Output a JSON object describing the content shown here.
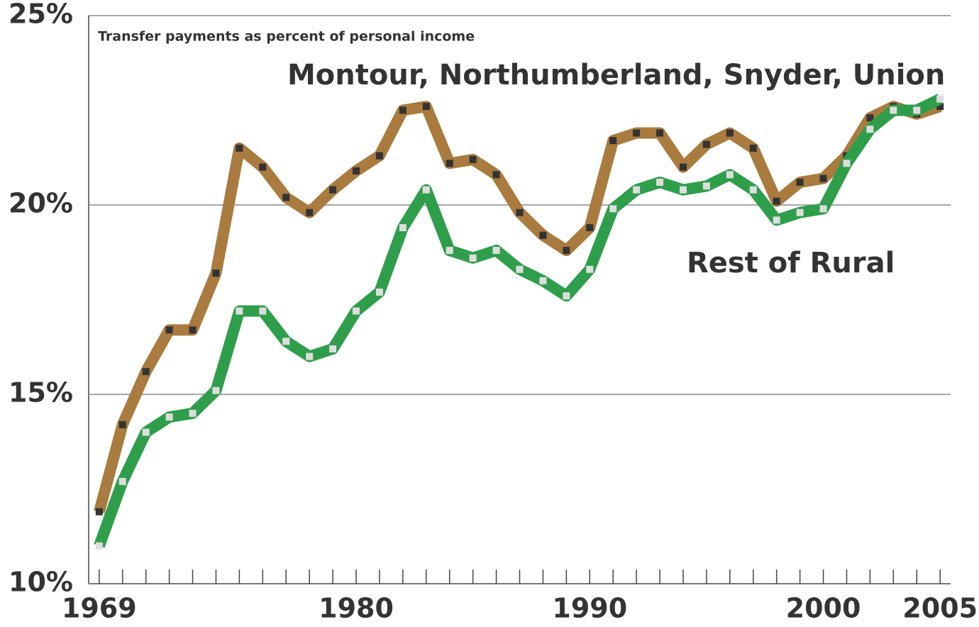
{
  "chart_data": {
    "type": "line",
    "subtitle": "Transfer payments as percent of personal income",
    "x": [
      1969,
      1970,
      1971,
      1972,
      1973,
      1974,
      1975,
      1976,
      1977,
      1978,
      1979,
      1980,
      1981,
      1982,
      1983,
      1984,
      1985,
      1986,
      1987,
      1988,
      1989,
      1990,
      1991,
      1992,
      1993,
      1994,
      1995,
      1996,
      1997,
      1998,
      1999,
      2000,
      2001,
      2002,
      2003,
      2004,
      2005
    ],
    "series": [
      {
        "name": "Montour, Northumberland, Snyder, Union",
        "color": "#a97b3e",
        "marker_color": "#333333",
        "values": [
          11.9,
          14.2,
          15.6,
          16.7,
          16.7,
          18.2,
          21.5,
          21.0,
          20.2,
          19.8,
          20.4,
          20.9,
          21.3,
          22.5,
          22.6,
          21.1,
          21.2,
          20.8,
          19.8,
          19.2,
          18.8,
          19.4,
          21.7,
          21.9,
          21.9,
          21.0,
          21.6,
          21.9,
          21.5,
          20.1,
          20.6,
          20.7,
          21.3,
          22.3,
          22.6,
          22.4,
          22.6
        ]
      },
      {
        "name": "Rest of Rural",
        "color": "#2e9e4b",
        "marker_color": "#dddddd",
        "values": [
          11.0,
          12.7,
          14.0,
          14.4,
          14.5,
          15.1,
          17.2,
          17.2,
          16.4,
          16.0,
          16.2,
          17.2,
          17.7,
          19.4,
          20.4,
          18.8,
          18.6,
          18.8,
          18.3,
          18.0,
          17.6,
          18.3,
          19.9,
          20.4,
          20.6,
          20.4,
          20.5,
          20.8,
          20.4,
          19.6,
          19.8,
          19.9,
          21.1,
          22.0,
          22.5,
          22.5,
          22.8
        ]
      }
    ],
    "xlim": [
      1968.55,
      2005.45
    ],
    "xticks": [
      1969,
      1980,
      1990,
      2000,
      2005
    ],
    "ylim": [
      10,
      25
    ],
    "yticks": [
      {
        "value": 10,
        "label": "10%"
      },
      {
        "value": 15,
        "label": "15%"
      },
      {
        "value": 20,
        "label": "20%"
      },
      {
        "value": 25,
        "label": "25%"
      }
    ],
    "grid": true
  }
}
